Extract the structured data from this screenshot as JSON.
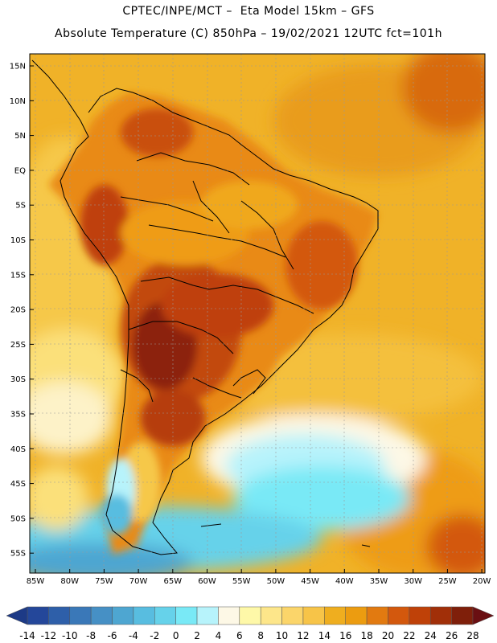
{
  "header": {
    "line1": "CPTEC/INPE/MCT –  Eta Model 15km – GFS",
    "line2": "Absolute Temperature (C) 850hPa – 19/02/2021 12UTC fct=101h"
  },
  "map": {
    "lat_labels": [
      "15N",
      "10N",
      "5N",
      "EQ",
      "5S",
      "10S",
      "15S",
      "20S",
      "25S",
      "30S",
      "35S",
      "40S",
      "45S",
      "50S",
      "55S"
    ],
    "lon_labels": [
      "85W",
      "80W",
      "75W",
      "70W",
      "65W",
      "60W",
      "55W",
      "50W",
      "45W",
      "40W",
      "35W",
      "30W",
      "25W",
      "20W"
    ],
    "region": "South America",
    "extent": {
      "lon": [
        -86,
        -20
      ],
      "lat": [
        -58,
        16
      ]
    }
  },
  "colorbar": {
    "labels": [
      "-14",
      "-12",
      "-10",
      "-8",
      "-6",
      "-4",
      "-2",
      "0",
      "2",
      "4",
      "6",
      "8",
      "10",
      "12",
      "14",
      "16",
      "18",
      "20",
      "22",
      "24",
      "26",
      "28"
    ],
    "colors": [
      "#24479a",
      "#2e5fa9",
      "#3a78b8",
      "#4690c5",
      "#4ea6d1",
      "#58bde0",
      "#66d2ea",
      "#79e9f6",
      "#b7f3fb",
      "#fdf8e6",
      "#fef8a8",
      "#fde68a",
      "#fbd56a",
      "#f7c448",
      "#efae1f",
      "#ec9c10",
      "#e27a10",
      "#d3580d",
      "#bf4108",
      "#a12f08",
      "#7f1f0a"
    ]
  }
}
